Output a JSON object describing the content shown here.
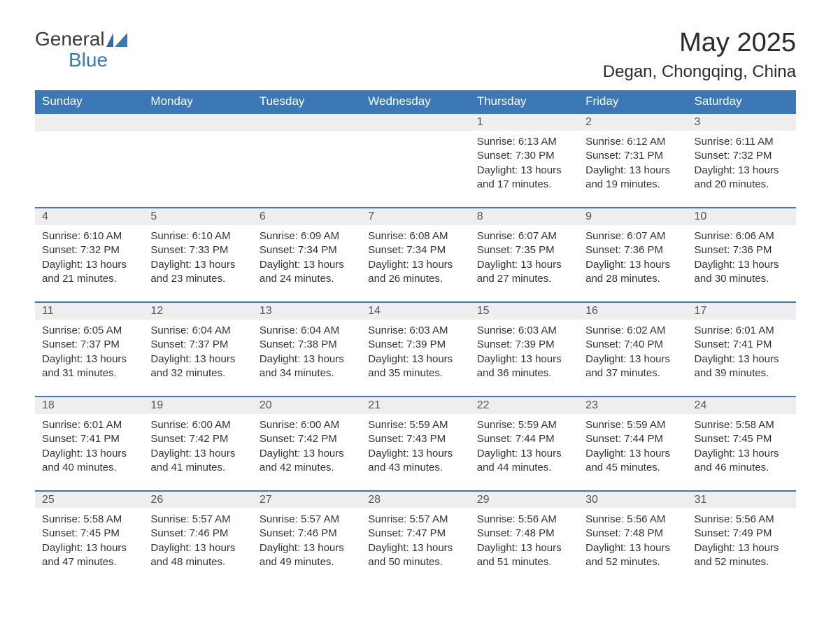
{
  "logo": {
    "text1": "General",
    "text2": "Blue"
  },
  "title": "May 2025",
  "location": "Degan, Chongqing, China",
  "weekdays": [
    "Sunday",
    "Monday",
    "Tuesday",
    "Wednesday",
    "Thursday",
    "Friday",
    "Saturday"
  ],
  "colors": {
    "header_bg": "#3b78b5",
    "header_text": "#ffffff",
    "day_number_bg": "#eeeeee",
    "text": "#333333",
    "border": "#3b78b5"
  },
  "weeks": [
    [
      {
        "day": "",
        "sunrise": "",
        "sunset": "",
        "daylight": ""
      },
      {
        "day": "",
        "sunrise": "",
        "sunset": "",
        "daylight": ""
      },
      {
        "day": "",
        "sunrise": "",
        "sunset": "",
        "daylight": ""
      },
      {
        "day": "",
        "sunrise": "",
        "sunset": "",
        "daylight": ""
      },
      {
        "day": "1",
        "sunrise": "Sunrise: 6:13 AM",
        "sunset": "Sunset: 7:30 PM",
        "daylight": "Daylight: 13 hours and 17 minutes."
      },
      {
        "day": "2",
        "sunrise": "Sunrise: 6:12 AM",
        "sunset": "Sunset: 7:31 PM",
        "daylight": "Daylight: 13 hours and 19 minutes."
      },
      {
        "day": "3",
        "sunrise": "Sunrise: 6:11 AM",
        "sunset": "Sunset: 7:32 PM",
        "daylight": "Daylight: 13 hours and 20 minutes."
      }
    ],
    [
      {
        "day": "4",
        "sunrise": "Sunrise: 6:10 AM",
        "sunset": "Sunset: 7:32 PM",
        "daylight": "Daylight: 13 hours and 21 minutes."
      },
      {
        "day": "5",
        "sunrise": "Sunrise: 6:10 AM",
        "sunset": "Sunset: 7:33 PM",
        "daylight": "Daylight: 13 hours and 23 minutes."
      },
      {
        "day": "6",
        "sunrise": "Sunrise: 6:09 AM",
        "sunset": "Sunset: 7:34 PM",
        "daylight": "Daylight: 13 hours and 24 minutes."
      },
      {
        "day": "7",
        "sunrise": "Sunrise: 6:08 AM",
        "sunset": "Sunset: 7:34 PM",
        "daylight": "Daylight: 13 hours and 26 minutes."
      },
      {
        "day": "8",
        "sunrise": "Sunrise: 6:07 AM",
        "sunset": "Sunset: 7:35 PM",
        "daylight": "Daylight: 13 hours and 27 minutes."
      },
      {
        "day": "9",
        "sunrise": "Sunrise: 6:07 AM",
        "sunset": "Sunset: 7:36 PM",
        "daylight": "Daylight: 13 hours and 28 minutes."
      },
      {
        "day": "10",
        "sunrise": "Sunrise: 6:06 AM",
        "sunset": "Sunset: 7:36 PM",
        "daylight": "Daylight: 13 hours and 30 minutes."
      }
    ],
    [
      {
        "day": "11",
        "sunrise": "Sunrise: 6:05 AM",
        "sunset": "Sunset: 7:37 PM",
        "daylight": "Daylight: 13 hours and 31 minutes."
      },
      {
        "day": "12",
        "sunrise": "Sunrise: 6:04 AM",
        "sunset": "Sunset: 7:37 PM",
        "daylight": "Daylight: 13 hours and 32 minutes."
      },
      {
        "day": "13",
        "sunrise": "Sunrise: 6:04 AM",
        "sunset": "Sunset: 7:38 PM",
        "daylight": "Daylight: 13 hours and 34 minutes."
      },
      {
        "day": "14",
        "sunrise": "Sunrise: 6:03 AM",
        "sunset": "Sunset: 7:39 PM",
        "daylight": "Daylight: 13 hours and 35 minutes."
      },
      {
        "day": "15",
        "sunrise": "Sunrise: 6:03 AM",
        "sunset": "Sunset: 7:39 PM",
        "daylight": "Daylight: 13 hours and 36 minutes."
      },
      {
        "day": "16",
        "sunrise": "Sunrise: 6:02 AM",
        "sunset": "Sunset: 7:40 PM",
        "daylight": "Daylight: 13 hours and 37 minutes."
      },
      {
        "day": "17",
        "sunrise": "Sunrise: 6:01 AM",
        "sunset": "Sunset: 7:41 PM",
        "daylight": "Daylight: 13 hours and 39 minutes."
      }
    ],
    [
      {
        "day": "18",
        "sunrise": "Sunrise: 6:01 AM",
        "sunset": "Sunset: 7:41 PM",
        "daylight": "Daylight: 13 hours and 40 minutes."
      },
      {
        "day": "19",
        "sunrise": "Sunrise: 6:00 AM",
        "sunset": "Sunset: 7:42 PM",
        "daylight": "Daylight: 13 hours and 41 minutes."
      },
      {
        "day": "20",
        "sunrise": "Sunrise: 6:00 AM",
        "sunset": "Sunset: 7:42 PM",
        "daylight": "Daylight: 13 hours and 42 minutes."
      },
      {
        "day": "21",
        "sunrise": "Sunrise: 5:59 AM",
        "sunset": "Sunset: 7:43 PM",
        "daylight": "Daylight: 13 hours and 43 minutes."
      },
      {
        "day": "22",
        "sunrise": "Sunrise: 5:59 AM",
        "sunset": "Sunset: 7:44 PM",
        "daylight": "Daylight: 13 hours and 44 minutes."
      },
      {
        "day": "23",
        "sunrise": "Sunrise: 5:59 AM",
        "sunset": "Sunset: 7:44 PM",
        "daylight": "Daylight: 13 hours and 45 minutes."
      },
      {
        "day": "24",
        "sunrise": "Sunrise: 5:58 AM",
        "sunset": "Sunset: 7:45 PM",
        "daylight": "Daylight: 13 hours and 46 minutes."
      }
    ],
    [
      {
        "day": "25",
        "sunrise": "Sunrise: 5:58 AM",
        "sunset": "Sunset: 7:45 PM",
        "daylight": "Daylight: 13 hours and 47 minutes."
      },
      {
        "day": "26",
        "sunrise": "Sunrise: 5:57 AM",
        "sunset": "Sunset: 7:46 PM",
        "daylight": "Daylight: 13 hours and 48 minutes."
      },
      {
        "day": "27",
        "sunrise": "Sunrise: 5:57 AM",
        "sunset": "Sunset: 7:46 PM",
        "daylight": "Daylight: 13 hours and 49 minutes."
      },
      {
        "day": "28",
        "sunrise": "Sunrise: 5:57 AM",
        "sunset": "Sunset: 7:47 PM",
        "daylight": "Daylight: 13 hours and 50 minutes."
      },
      {
        "day": "29",
        "sunrise": "Sunrise: 5:56 AM",
        "sunset": "Sunset: 7:48 PM",
        "daylight": "Daylight: 13 hours and 51 minutes."
      },
      {
        "day": "30",
        "sunrise": "Sunrise: 5:56 AM",
        "sunset": "Sunset: 7:48 PM",
        "daylight": "Daylight: 13 hours and 52 minutes."
      },
      {
        "day": "31",
        "sunrise": "Sunrise: 5:56 AM",
        "sunset": "Sunset: 7:49 PM",
        "daylight": "Daylight: 13 hours and 52 minutes."
      }
    ]
  ]
}
